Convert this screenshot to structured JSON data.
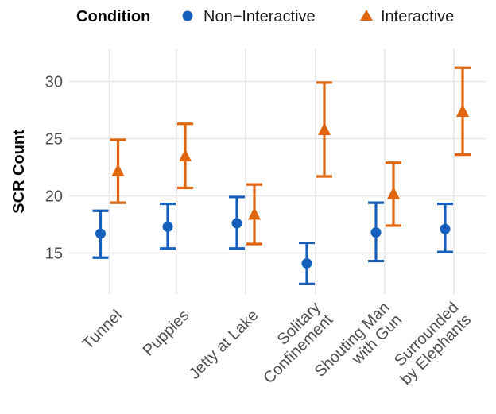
{
  "chart_data": {
    "type": "scatter",
    "ylabel": "SCR Count",
    "xlabel": "",
    "ylim": [
      12,
      32.4
    ],
    "yticks": [
      15,
      20,
      25,
      30
    ],
    "grid": true,
    "legend": {
      "title": "Condition",
      "position": "top",
      "entries": [
        {
          "name": "Non−Interactive",
          "color": "#1560bd",
          "shape": "circle"
        },
        {
          "name": "Interactive",
          "color": "#e0650f",
          "shape": "triangle"
        }
      ]
    },
    "categories": [
      [
        "Tunnel"
      ],
      [
        "Puppies"
      ],
      [
        "Jetty at Lake"
      ],
      [
        "Solitary",
        "Confinement"
      ],
      [
        "Shouting Man",
        "with Gun"
      ],
      [
        "Surrounded",
        "by Elephants"
      ]
    ],
    "series": [
      {
        "name": "Non−Interactive",
        "color": "#1560bd",
        "values": [
          16.7,
          17.3,
          17.6,
          14.1,
          16.8,
          17.1
        ],
        "lower": [
          14.6,
          15.4,
          15.4,
          12.3,
          14.3,
          15.1
        ],
        "upper": [
          18.7,
          19.3,
          19.9,
          15.9,
          19.4,
          19.3
        ]
      },
      {
        "name": "Interactive",
        "color": "#e0650f",
        "values": [
          22.2,
          23.5,
          18.4,
          25.8,
          20.2,
          27.4
        ],
        "lower": [
          19.4,
          20.7,
          15.8,
          21.7,
          17.4,
          23.6
        ],
        "upper": [
          24.9,
          26.3,
          21.0,
          29.9,
          22.9,
          31.2
        ]
      }
    ]
  }
}
